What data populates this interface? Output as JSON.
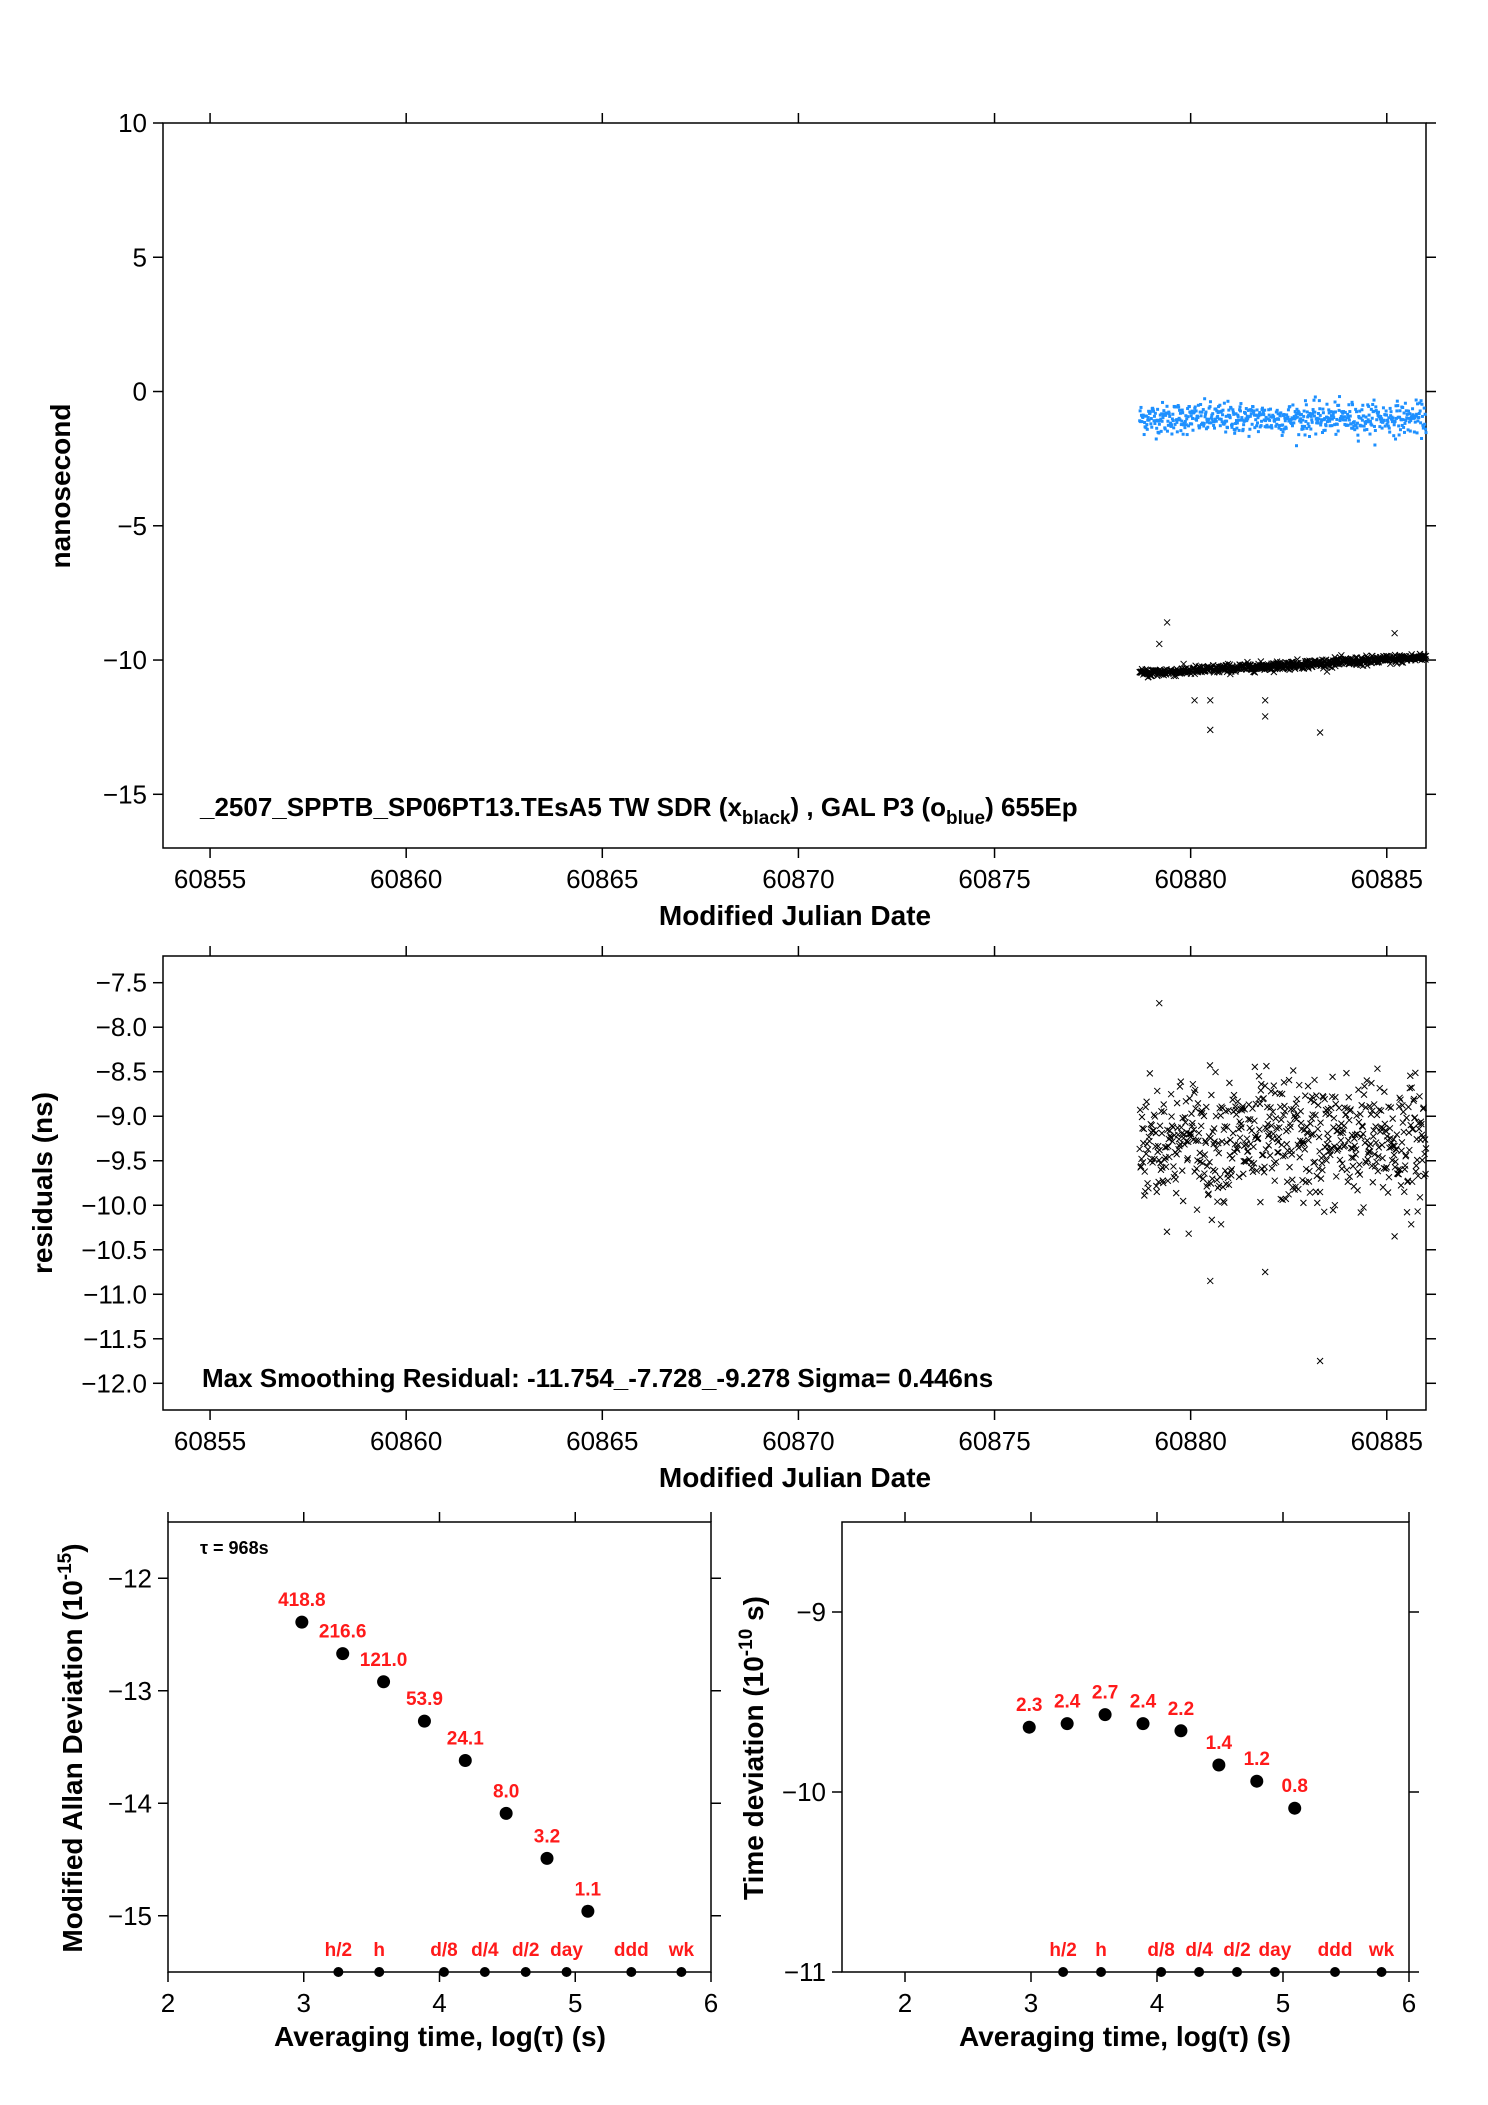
{
  "chart_data": [
    {
      "id": "top",
      "type": "scatter",
      "xlabel": "Modified Julian Date",
      "ylabel": "nanosecond",
      "xlim": [
        60853.8,
        60886
      ],
      "ylim": [
        -17,
        10
      ],
      "xticks": [
        60855,
        60860,
        60865,
        60870,
        60875,
        60880,
        60885
      ],
      "yticks": [
        10,
        5,
        0,
        -5,
        -10,
        -15
      ],
      "annotation": {
        "prefix": "_2507_SPPTB_SP06PT13.TEsA5     TW SDR (x",
        "sub1": "black",
        "mid": ") ,  GAL P3 (o",
        "sub2": "blue",
        "suffix": ")  655Ep"
      },
      "series": [
        {
          "marker": "dot",
          "color": "#1e90ff",
          "x_range": [
            60878.7,
            60886
          ],
          "mean": -1.0,
          "spread": 0.45,
          "n": 640
        },
        {
          "marker": "x",
          "color": "#000000",
          "x_range": [
            60878.7,
            60886
          ],
          "y_start": -10.5,
          "y_end": -9.9,
          "spread": 0.08,
          "n": 620,
          "outliers": [
            [
              60879.2,
              -9.4
            ],
            [
              60879.4,
              -8.6
            ],
            [
              60880.1,
              -11.5
            ],
            [
              60880.5,
              -11.5
            ],
            [
              60880.5,
              -12.6
            ],
            [
              60881.9,
              -11.5
            ],
            [
              60881.9,
              -12.1
            ],
            [
              60883.3,
              -12.7
            ],
            [
              60885.2,
              -9.0
            ],
            [
              60884.5,
              -10.2
            ]
          ]
        }
      ]
    },
    {
      "id": "middle",
      "type": "scatter",
      "xlabel": "Modified Julian Date",
      "ylabel": "residuals (ns)",
      "xlim": [
        60853.8,
        60886
      ],
      "ylim": [
        -12.3,
        -7.2
      ],
      "xticks": [
        60855,
        60860,
        60865,
        60870,
        60875,
        60880,
        60885
      ],
      "yticks": [
        "-7.5",
        "-8.0",
        "-8.5",
        "-9.0",
        "-9.5",
        "-10.0",
        "-10.5",
        "-11.0",
        "-11.5",
        "-12.0"
      ],
      "annotation": "Max Smoothing Residual: -11.754_-7.728_-9.278  Sigma= 0.446ns",
      "series": [
        {
          "marker": "x",
          "color": "#000000",
          "x_range": [
            60878.7,
            60886
          ],
          "mean": -9.28,
          "spread": 0.446,
          "n": 620,
          "outliers": [
            [
              60879.2,
              -7.73
            ],
            [
              60880.5,
              -10.85
            ],
            [
              60881.9,
              -10.75
            ],
            [
              60883.3,
              -11.75
            ],
            [
              60885.2,
              -10.35
            ]
          ]
        }
      ]
    },
    {
      "id": "mdev",
      "type": "scatter",
      "xlabel": "Averaging time, log(τ) (s)",
      "ylabel": "Modified Allan Deviation (10",
      "ylabel_sup": "-15",
      "ylabel_tail": ")",
      "xlim": [
        2,
        6
      ],
      "ylim": [
        -15.5,
        -11.5
      ],
      "xticks": [
        "2",
        "3",
        "4",
        "5",
        "6"
      ],
      "yticks": [
        "-12",
        "-13",
        "-14",
        "-15"
      ],
      "tau_label": "τ = 968s",
      "points": [
        {
          "x": 2.986,
          "y": -12.39,
          "label": "418.8"
        },
        {
          "x": 3.287,
          "y": -12.67,
          "label": "216.6"
        },
        {
          "x": 3.588,
          "y": -12.92,
          "label": "121.0"
        },
        {
          "x": 3.889,
          "y": -13.27,
          "label": "53.9"
        },
        {
          "x": 4.19,
          "y": -13.62,
          "label": "24.1"
        },
        {
          "x": 4.491,
          "y": -14.09,
          "label": "8.0"
        },
        {
          "x": 4.792,
          "y": -14.49,
          "label": "3.2"
        },
        {
          "x": 5.093,
          "y": -14.96,
          "label": "1.1"
        }
      ],
      "markers": [
        {
          "x": 3.255,
          "label": "h/2"
        },
        {
          "x": 3.556,
          "label": "h"
        },
        {
          "x": 4.033,
          "label": "d/8"
        },
        {
          "x": 4.334,
          "label": "d/4"
        },
        {
          "x": 4.635,
          "label": "d/2"
        },
        {
          "x": 4.936,
          "label": "day"
        },
        {
          "x": 5.413,
          "label": "ddd"
        },
        {
          "x": 5.782,
          "label": "wk"
        }
      ]
    },
    {
      "id": "tdev",
      "type": "scatter",
      "xlabel": "Averaging time, log(τ) (s)",
      "ylabel": "Time deviation (10",
      "ylabel_sup": "-10",
      "ylabel_tail": " s)",
      "xlim": [
        1.5,
        6
      ],
      "ylim": [
        -11,
        -8.5
      ],
      "xticks": [
        "2",
        "3",
        "4",
        "5",
        "6"
      ],
      "yticks": [
        "-9",
        "-10",
        "-11"
      ],
      "points": [
        {
          "x": 2.986,
          "y": -9.64,
          "label": "2.3"
        },
        {
          "x": 3.287,
          "y": -9.62,
          "label": "2.4"
        },
        {
          "x": 3.588,
          "y": -9.57,
          "label": "2.7"
        },
        {
          "x": 3.889,
          "y": -9.62,
          "label": "2.4"
        },
        {
          "x": 4.19,
          "y": -9.66,
          "label": "2.2"
        },
        {
          "x": 4.491,
          "y": -9.85,
          "label": "1.4"
        },
        {
          "x": 4.792,
          "y": -9.94,
          "label": "1.2"
        },
        {
          "x": 5.093,
          "y": -10.09,
          "label": "0.8"
        }
      ],
      "markers": [
        {
          "x": 3.255,
          "label": "h/2"
        },
        {
          "x": 3.556,
          "label": "h"
        },
        {
          "x": 4.033,
          "label": "d/8"
        },
        {
          "x": 4.334,
          "label": "d/4"
        },
        {
          "x": 4.635,
          "label": "d/2"
        },
        {
          "x": 4.936,
          "label": "day"
        },
        {
          "x": 5.413,
          "label": "ddd"
        },
        {
          "x": 5.782,
          "label": "wk"
        }
      ]
    }
  ]
}
